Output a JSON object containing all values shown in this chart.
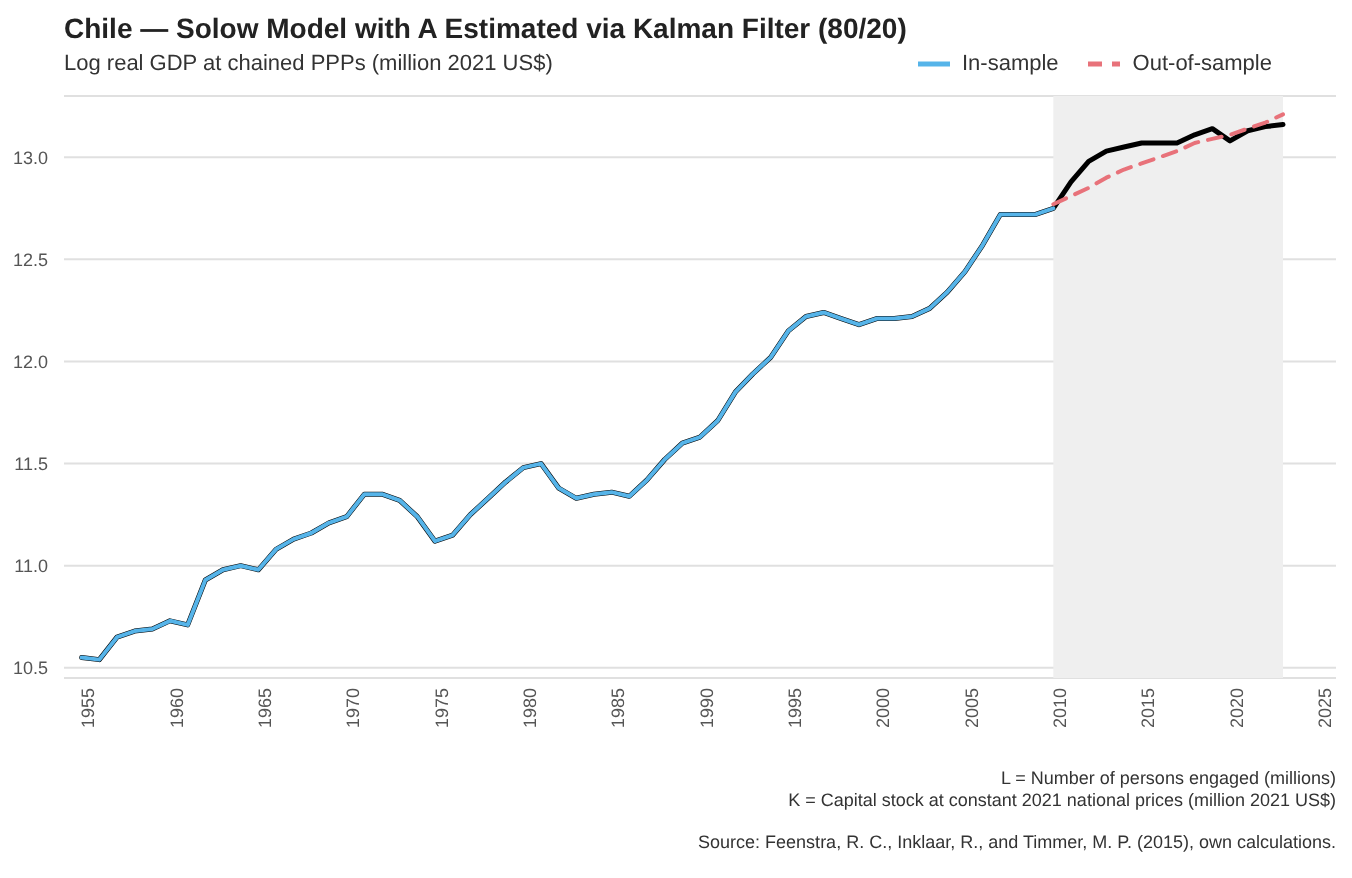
{
  "chart_data": {
    "type": "line",
    "title": "Chile — Solow Model with A Estimated via Kalman Filter (80/20)",
    "subtitle": "Log real GDP at chained PPPs (million 2021 US$)",
    "x": [
      1955,
      1956,
      1957,
      1958,
      1959,
      1960,
      1961,
      1962,
      1963,
      1964,
      1965,
      1966,
      1967,
      1968,
      1969,
      1970,
      1971,
      1972,
      1973,
      1974,
      1975,
      1976,
      1977,
      1978,
      1979,
      1980,
      1981,
      1982,
      1983,
      1984,
      1985,
      1986,
      1987,
      1988,
      1989,
      1990,
      1991,
      1992,
      1993,
      1994,
      1995,
      1996,
      1997,
      1998,
      1999,
      2000,
      2001,
      2002,
      2003,
      2004,
      2005,
      2006,
      2007,
      2008,
      2009,
      2010,
      2011,
      2012,
      2013,
      2014,
      2015,
      2016,
      2017,
      2018,
      2019,
      2020,
      2021,
      2022,
      2023
    ],
    "series": [
      {
        "color": "#000000",
        "values": [
          10.55,
          10.54,
          10.65,
          10.68,
          10.69,
          10.73,
          10.71,
          10.93,
          10.98,
          11.0,
          10.98,
          11.08,
          11.13,
          11.16,
          11.21,
          11.24,
          11.35,
          11.35,
          11.32,
          11.24,
          11.12,
          11.15,
          11.25,
          11.33,
          11.41,
          11.48,
          11.5,
          11.38,
          11.33,
          11.35,
          11.36,
          11.34,
          11.42,
          11.52,
          11.6,
          11.63,
          11.71,
          11.85,
          11.94,
          12.02,
          12.15,
          12.22,
          12.24,
          12.21,
          12.18,
          12.21,
          12.21,
          12.22,
          12.26,
          12.34,
          12.44,
          12.57,
          12.72,
          12.72,
          12.72,
          12.75,
          12.88,
          12.98,
          13.03,
          13.05,
          13.07,
          13.07,
          13.07,
          13.11,
          13.14,
          13.08,
          13.13,
          13.15,
          13.16
        ]
      },
      {
        "name": "In-sample",
        "color": "#56b4e9",
        "values": [
          10.55,
          10.54,
          10.65,
          10.68,
          10.69,
          10.73,
          10.71,
          10.93,
          10.98,
          11.0,
          10.98,
          11.08,
          11.13,
          11.16,
          11.21,
          11.24,
          11.35,
          11.35,
          11.32,
          11.24,
          11.12,
          11.15,
          11.25,
          11.33,
          11.41,
          11.48,
          11.5,
          11.38,
          11.33,
          11.35,
          11.36,
          11.34,
          11.42,
          11.52,
          11.6,
          11.63,
          11.71,
          11.85,
          11.94,
          12.02,
          12.15,
          12.22,
          12.24,
          12.21,
          12.18,
          12.21,
          12.21,
          12.22,
          12.26,
          12.34,
          12.44,
          12.57,
          12.72,
          12.72,
          12.72,
          12.75,
          null,
          null,
          null,
          null,
          null,
          null,
          null,
          null,
          null,
          null,
          null,
          null,
          null
        ]
      },
      {
        "name": "Out-of-sample",
        "color": "#e8727a",
        "line_style": "dashed",
        "values": [
          null,
          null,
          null,
          null,
          null,
          null,
          null,
          null,
          null,
          null,
          null,
          null,
          null,
          null,
          null,
          null,
          null,
          null,
          null,
          null,
          null,
          null,
          null,
          null,
          null,
          null,
          null,
          null,
          null,
          null,
          null,
          null,
          null,
          null,
          null,
          null,
          null,
          null,
          null,
          null,
          null,
          null,
          null,
          null,
          null,
          null,
          null,
          null,
          null,
          null,
          null,
          null,
          null,
          null,
          null,
          12.77,
          12.81,
          12.85,
          12.9,
          12.94,
          12.97,
          13.0,
          13.03,
          13.07,
          13.09,
          13.11,
          13.14,
          13.17,
          13.21
        ]
      }
    ],
    "xlim": [
      1954,
      2026
    ],
    "xticks": [
      1955,
      1960,
      1965,
      1970,
      1975,
      1980,
      1985,
      1990,
      1995,
      2000,
      2005,
      2010,
      2015,
      2020,
      2025
    ],
    "ylim": [
      10.45,
      13.3
    ],
    "yticks": [
      {
        "value": 10.5,
        "label": "10.5"
      },
      {
        "value": 11,
        "label": "11.0"
      },
      {
        "value": 11.5,
        "label": "11.5"
      },
      {
        "value": 12,
        "label": "12.0"
      },
      {
        "value": 12.5,
        "label": "12.5"
      },
      {
        "value": 13,
        "label": "13.0"
      }
    ],
    "bands": [
      {
        "axis": "x",
        "from": 2010,
        "to": 2023,
        "color": "#efefef"
      }
    ],
    "grid": "y",
    "legend": "top right",
    "line_style": "solid",
    "marker": "none",
    "annotations": [
      "L = Number of persons engaged (millions)",
      "K = Capital stock at constant 2021 national prices (million 2021 US$)",
      "Source: Feenstra, R. C., Inklaar, R., and Timmer, M. P. (2015), own calculations."
    ]
  }
}
